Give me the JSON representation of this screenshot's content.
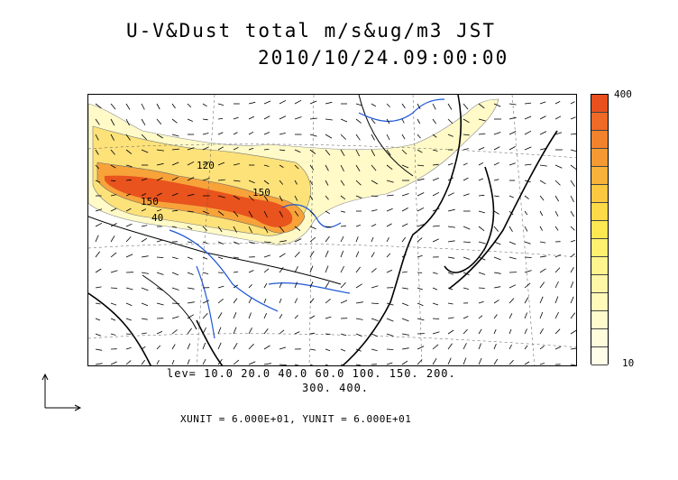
{
  "title": {
    "line1": "U-V&Dust total m/s&ug/m3 JST",
    "line2": "2010/10/24.09:00:00"
  },
  "legend": {
    "levels_line1": "lev= 10.0 20.0 40.0 60.0 100. 150. 200.",
    "levels_line2": "300. 400.",
    "units": "XUNIT = 6.000E+01, YUNIT = 6.000E+01"
  },
  "colorbar": {
    "max_label": "400",
    "min_label": "10",
    "colors": [
      "#e8501e",
      "#ee6a26",
      "#f2822c",
      "#f59a33",
      "#f8b23a",
      "#fbc840",
      "#fdda48",
      "#ffe852",
      "#fff070",
      "#fff48e",
      "#fff7a6",
      "#fff9ba",
      "#fffbcc",
      "#fffcdc",
      "#fffde8"
    ]
  },
  "contour_labels": [
    "150",
    "40",
    "150",
    "120"
  ],
  "colors": {
    "coast": "#000000",
    "rivers": "#1f57d6",
    "grid": "#555555"
  }
}
